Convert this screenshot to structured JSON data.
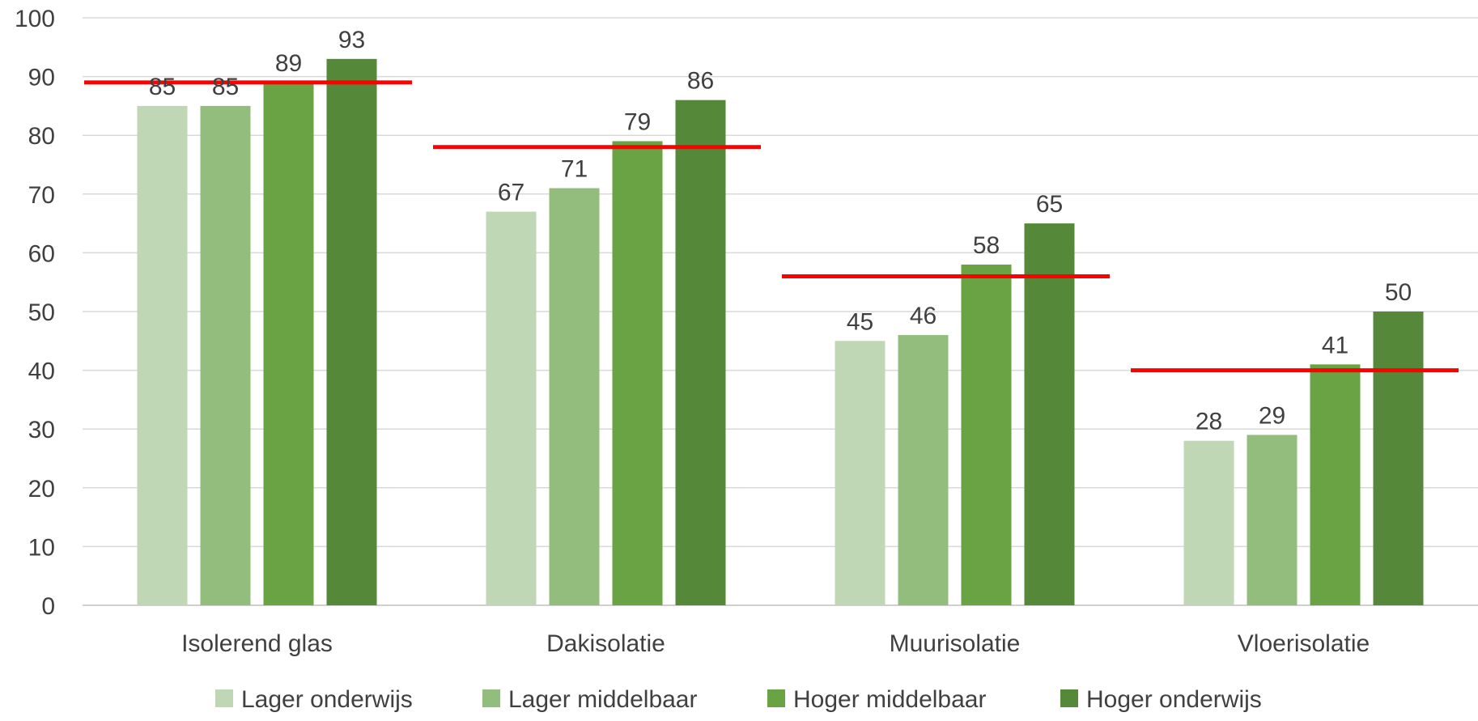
{
  "chart_data": {
    "type": "bar",
    "title": "",
    "xlabel": "",
    "ylabel": "",
    "ylim": [
      0,
      100
    ],
    "yticks": [
      0,
      10,
      20,
      30,
      40,
      50,
      60,
      70,
      80,
      90,
      100
    ],
    "grid": true,
    "legend_position": "bottom",
    "categories": [
      "Isolerend glas",
      "Dakisolatie",
      "Muurisolatie",
      "Vloerisolatie"
    ],
    "series": [
      {
        "name": "Lager onderwijs",
        "color": "#bfd7b4",
        "values": [
          85,
          67,
          45,
          28
        ]
      },
      {
        "name": "Lager middelbaar",
        "color": "#93bd7d",
        "values": [
          85,
          71,
          46,
          29
        ]
      },
      {
        "name": "Hoger middelbaar",
        "color": "#69a343",
        "values": [
          89,
          79,
          58,
          41
        ]
      },
      {
        "name": "Hoger onderwijs",
        "color": "#558838",
        "values": [
          93,
          86,
          65,
          50
        ]
      }
    ],
    "reference_lines": {
      "color": "#ff0000",
      "values": [
        89,
        78,
        56,
        40
      ]
    }
  }
}
